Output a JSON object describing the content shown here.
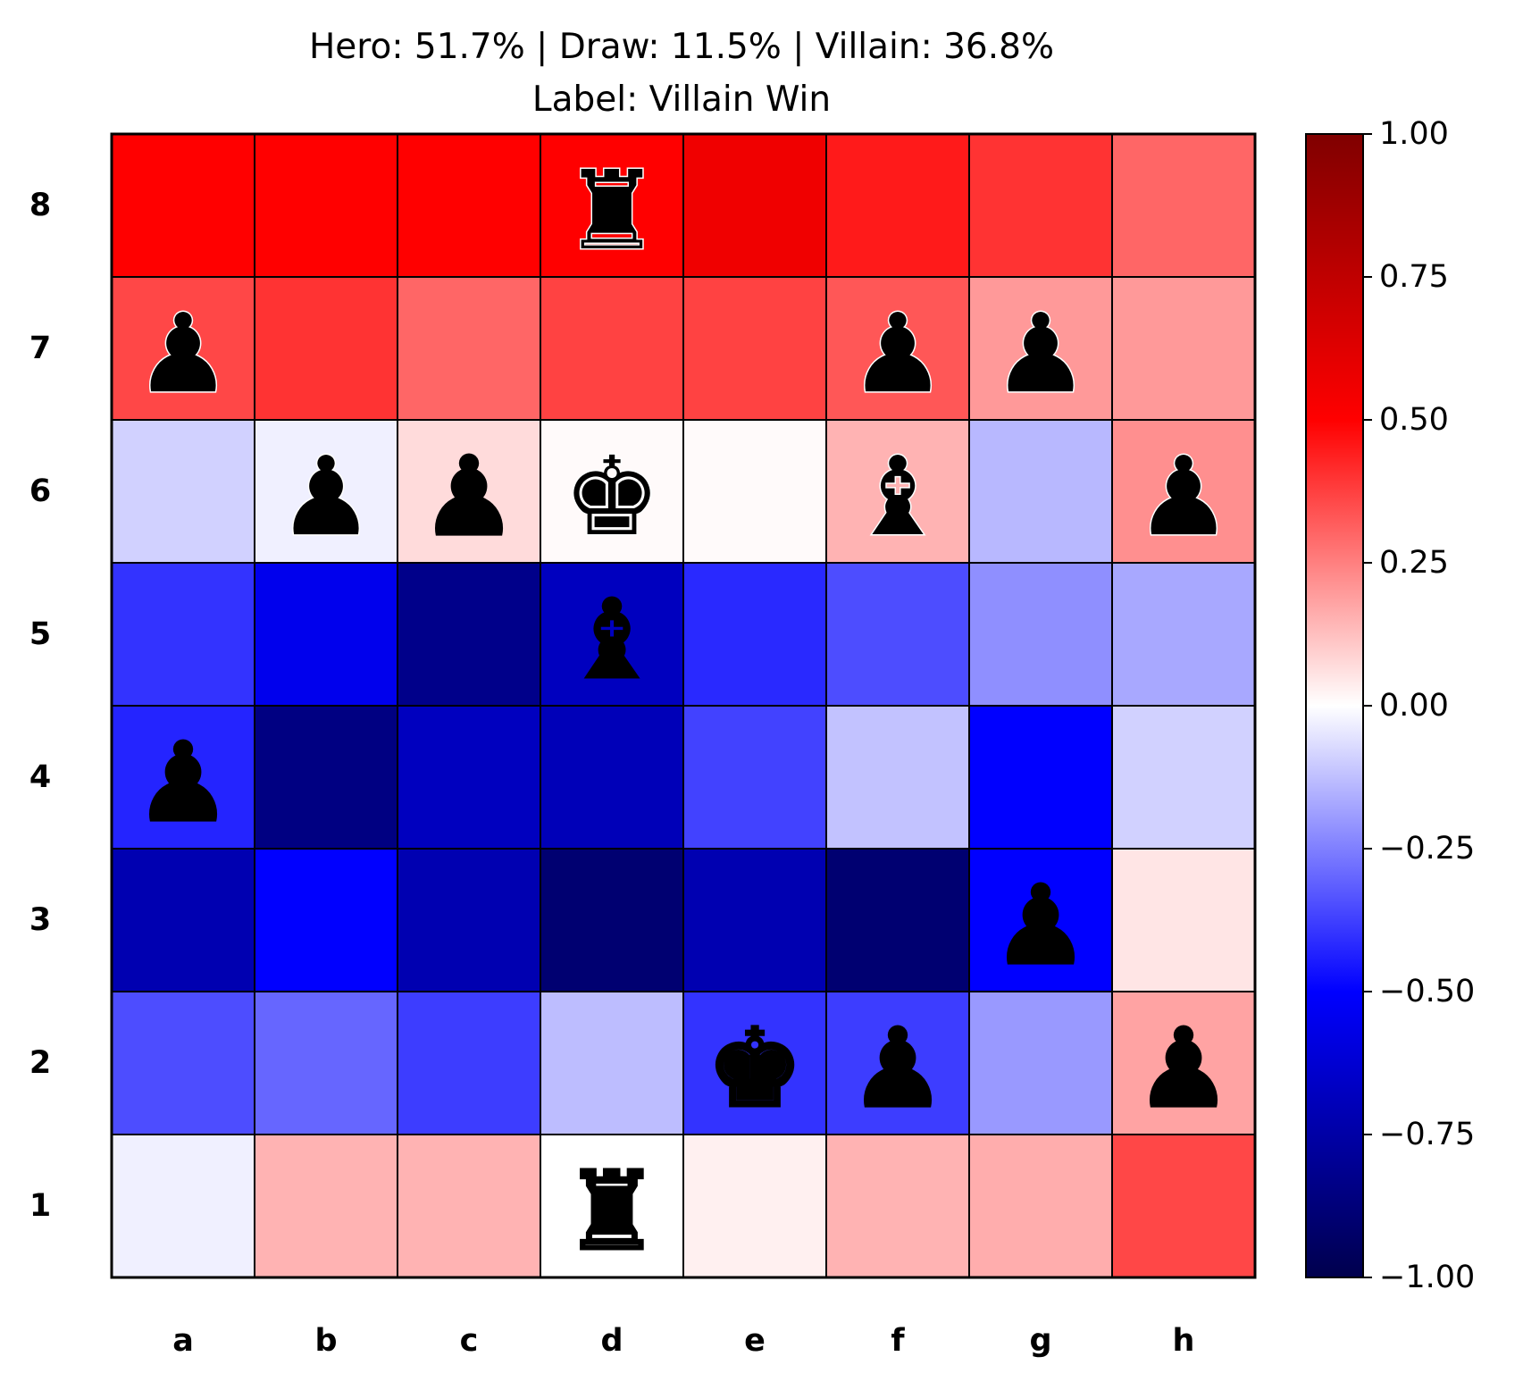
{
  "chart_data": {
    "type": "heatmap",
    "title": [
      "Hero: 51.7% | Draw: 11.5% | Villain: 36.8%",
      "Label: Villain Win"
    ],
    "files": [
      "a",
      "b",
      "c",
      "d",
      "e",
      "f",
      "g",
      "h"
    ],
    "ranks": [
      "8",
      "7",
      "6",
      "5",
      "4",
      "3",
      "2",
      "1"
    ],
    "values": [
      [
        0.5,
        0.5,
        0.5,
        0.5,
        0.56,
        0.45,
        0.4,
        0.3
      ],
      [
        0.36,
        0.4,
        0.3,
        0.37,
        0.37,
        0.33,
        0.2,
        0.2
      ],
      [
        -0.09,
        -0.03,
        0.07,
        0.01,
        0.01,
        0.15,
        -0.14,
        0.22
      ],
      [
        -0.4,
        -0.55,
        -0.83,
        -0.68,
        -0.42,
        -0.35,
        -0.22,
        -0.17
      ],
      [
        -0.43,
        -0.85,
        -0.68,
        -0.7,
        -0.37,
        -0.12,
        -0.5,
        -0.09
      ],
      [
        -0.72,
        -0.5,
        -0.72,
        -0.9,
        -0.72,
        -0.9,
        -0.5,
        0.05
      ],
      [
        -0.35,
        -0.3,
        -0.38,
        -0.13,
        -0.4,
        -0.38,
        -0.2,
        0.18
      ],
      [
        -0.03,
        0.15,
        0.15,
        0.0,
        0.03,
        0.15,
        0.16,
        0.36
      ]
    ],
    "pieces": [
      {
        "square": "d8",
        "color": "black",
        "piece": "rook",
        "glyph": "♜"
      },
      {
        "square": "a7",
        "color": "black",
        "piece": "pawn",
        "glyph": "♟"
      },
      {
        "square": "f7",
        "color": "black",
        "piece": "pawn",
        "glyph": "♟"
      },
      {
        "square": "g7",
        "color": "black",
        "piece": "pawn",
        "glyph": "♟"
      },
      {
        "square": "b6",
        "color": "black",
        "piece": "pawn",
        "glyph": "♟"
      },
      {
        "square": "c6",
        "color": "white",
        "piece": "pawn",
        "glyph": "♟"
      },
      {
        "square": "d6",
        "color": "black",
        "piece": "king",
        "glyph": "♚"
      },
      {
        "square": "f6",
        "color": "black",
        "piece": "bishop",
        "glyph": "♝"
      },
      {
        "square": "h6",
        "color": "black",
        "piece": "pawn",
        "glyph": "♟"
      },
      {
        "square": "d5",
        "color": "white",
        "piece": "bishop",
        "glyph": "♝"
      },
      {
        "square": "a4",
        "color": "white",
        "piece": "pawn",
        "glyph": "♟"
      },
      {
        "square": "g3",
        "color": "white",
        "piece": "pawn",
        "glyph": "♟"
      },
      {
        "square": "e2",
        "color": "white",
        "piece": "king",
        "glyph": "♚"
      },
      {
        "square": "f2",
        "color": "white",
        "piece": "pawn",
        "glyph": "♟"
      },
      {
        "square": "h2",
        "color": "white",
        "piece": "pawn",
        "glyph": "♟"
      },
      {
        "square": "d1",
        "color": "white",
        "piece": "rook",
        "glyph": "♜"
      }
    ],
    "colormap": "seismic",
    "colorbar": {
      "range": [
        -1.0,
        1.0
      ],
      "ticks": [
        1.0,
        0.75,
        0.5,
        0.25,
        0.0,
        -0.25,
        -0.5,
        -0.75,
        -1.0
      ],
      "tick_labels": [
        "1.00",
        "0.75",
        "0.50",
        "0.25",
        "0.00",
        "−0.25",
        "−0.50",
        "−0.75",
        "−1.00"
      ]
    },
    "grid": true
  }
}
